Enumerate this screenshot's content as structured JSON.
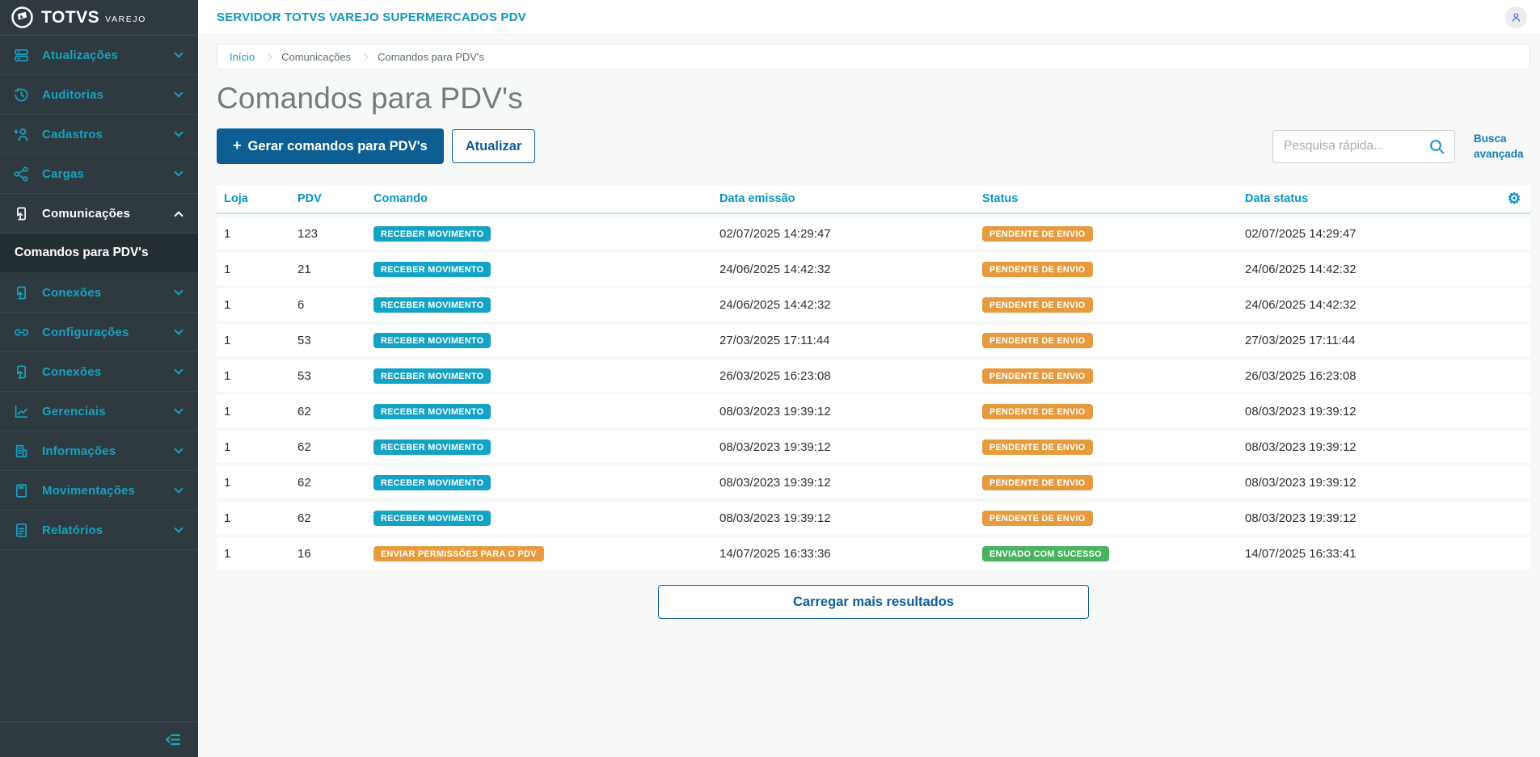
{
  "brand": {
    "name": "TOTVS",
    "product": "VAREJO",
    "logo_icon": "totvs-logo-icon"
  },
  "topbar": {
    "title": "SERVIDOR TOTVS VAREJO SUPERMERCADOS PDV",
    "user_icon": "user-avatar-icon"
  },
  "breadcrumb": {
    "items": [
      {
        "label": "Início"
      },
      {
        "label": "Comunicações"
      },
      {
        "label": "Comandos para PDV's"
      }
    ]
  },
  "page": {
    "title": "Comandos para PDV's"
  },
  "toolbar": {
    "generate_plus": "+",
    "generate_label": "Gerar comandos para PDV's",
    "refresh_label": "Atualizar",
    "search_placeholder": "Pesquisa rápida...",
    "search_icon": "search-icon",
    "advanced_search_label": "Busca avançada"
  },
  "sidebar": {
    "items": [
      {
        "label": "Atualizações",
        "icon": "server-icon",
        "expanded": false,
        "active": false
      },
      {
        "label": "Auditorias",
        "icon": "history-icon",
        "expanded": false,
        "active": false
      },
      {
        "label": "Cadastros",
        "icon": "user-plus-icon",
        "expanded": false,
        "active": false
      },
      {
        "label": "Cargas",
        "icon": "share-icon",
        "expanded": false,
        "active": false
      },
      {
        "label": "Comunicações",
        "icon": "file-upload-icon",
        "expanded": true,
        "active": true,
        "submenu": [
          {
            "label": "Comandos para PDV's",
            "active": true
          }
        ]
      },
      {
        "label": "Conexões",
        "icon": "file-upload-icon",
        "expanded": false,
        "active": false
      },
      {
        "label": "Configurações",
        "icon": "link-icon",
        "expanded": false,
        "active": false
      },
      {
        "label": "Conexões",
        "icon": "file-upload-icon",
        "expanded": false,
        "active": false
      },
      {
        "label": "Gerenciais",
        "icon": "chart-icon",
        "expanded": false,
        "active": false
      },
      {
        "label": "Informações",
        "icon": "building-icon",
        "expanded": false,
        "active": false
      },
      {
        "label": "Movimentações",
        "icon": "book-icon",
        "expanded": false,
        "active": false
      },
      {
        "label": "Relatórios",
        "icon": "document-icon",
        "expanded": false,
        "active": false
      }
    ],
    "collapse_icon": "collapse-menu-icon"
  },
  "table": {
    "headers": [
      "Loja",
      "PDV",
      "Comando",
      "Data emissão",
      "Status",
      "Data status"
    ],
    "settings_icon": "settings-gear-icon",
    "rows": [
      {
        "loja": "1",
        "pdv": "123",
        "comando": "RECEBER MOVIMENTO",
        "comando_style": "teal",
        "data_emissao": "02/07/2025 14:29:47",
        "status": "PENDENTE DE ENVIO",
        "status_style": "orange",
        "data_status": "02/07/2025 14:29:47"
      },
      {
        "loja": "1",
        "pdv": "21",
        "comando": "RECEBER MOVIMENTO",
        "comando_style": "teal",
        "data_emissao": "24/06/2025 14:42:32",
        "status": "PENDENTE DE ENVIO",
        "status_style": "orange",
        "data_status": "24/06/2025 14:42:32"
      },
      {
        "loja": "1",
        "pdv": "6",
        "comando": "RECEBER MOVIMENTO",
        "comando_style": "teal",
        "data_emissao": "24/06/2025 14:42:32",
        "status": "PENDENTE DE ENVIO",
        "status_style": "orange",
        "data_status": "24/06/2025 14:42:32"
      },
      {
        "loja": "1",
        "pdv": "53",
        "comando": "RECEBER MOVIMENTO",
        "comando_style": "teal",
        "data_emissao": "27/03/2025 17:11:44",
        "status": "PENDENTE DE ENVIO",
        "status_style": "orange",
        "data_status": "27/03/2025 17:11:44"
      },
      {
        "loja": "1",
        "pdv": "53",
        "comando": "RECEBER MOVIMENTO",
        "comando_style": "teal",
        "data_emissao": "26/03/2025 16:23:08",
        "status": "PENDENTE DE ENVIO",
        "status_style": "orange",
        "data_status": "26/03/2025 16:23:08"
      },
      {
        "loja": "1",
        "pdv": "62",
        "comando": "RECEBER MOVIMENTO",
        "comando_style": "teal",
        "data_emissao": "08/03/2023 19:39:12",
        "status": "PENDENTE DE ENVIO",
        "status_style": "orange",
        "data_status": "08/03/2023 19:39:12"
      },
      {
        "loja": "1",
        "pdv": "62",
        "comando": "RECEBER MOVIMENTO",
        "comando_style": "teal",
        "data_emissao": "08/03/2023 19:39:12",
        "status": "PENDENTE DE ENVIO",
        "status_style": "orange",
        "data_status": "08/03/2023 19:39:12"
      },
      {
        "loja": "1",
        "pdv": "62",
        "comando": "RECEBER MOVIMENTO",
        "comando_style": "teal",
        "data_emissao": "08/03/2023 19:39:12",
        "status": "PENDENTE DE ENVIO",
        "status_style": "orange",
        "data_status": "08/03/2023 19:39:12"
      },
      {
        "loja": "1",
        "pdv": "62",
        "comando": "RECEBER MOVIMENTO",
        "comando_style": "teal",
        "data_emissao": "08/03/2023 19:39:12",
        "status": "PENDENTE DE ENVIO",
        "status_style": "orange",
        "data_status": "08/03/2023 19:39:12"
      },
      {
        "loja": "1",
        "pdv": "16",
        "comando": "ENVIAR PERMISSÕES PARA O PDV",
        "comando_style": "orange",
        "data_emissao": "14/07/2025 16:33:36",
        "status": "ENVIADO COM SUCESSO",
        "status_style": "green",
        "data_status": "14/07/2025 16:33:41"
      }
    ]
  },
  "load_more": {
    "label": "Carregar mais resultados"
  },
  "colors": {
    "sidebar_bg": "#2e3a3f",
    "sidebar_accent": "#17a3c1",
    "header_teal": "#1296bc",
    "table_header_blue": "#0a96c2",
    "primary_blue": "#0c5e93",
    "badge_teal": "#14a3c4",
    "badge_orange": "#e79b3f",
    "badge_green": "#4ab35f"
  }
}
